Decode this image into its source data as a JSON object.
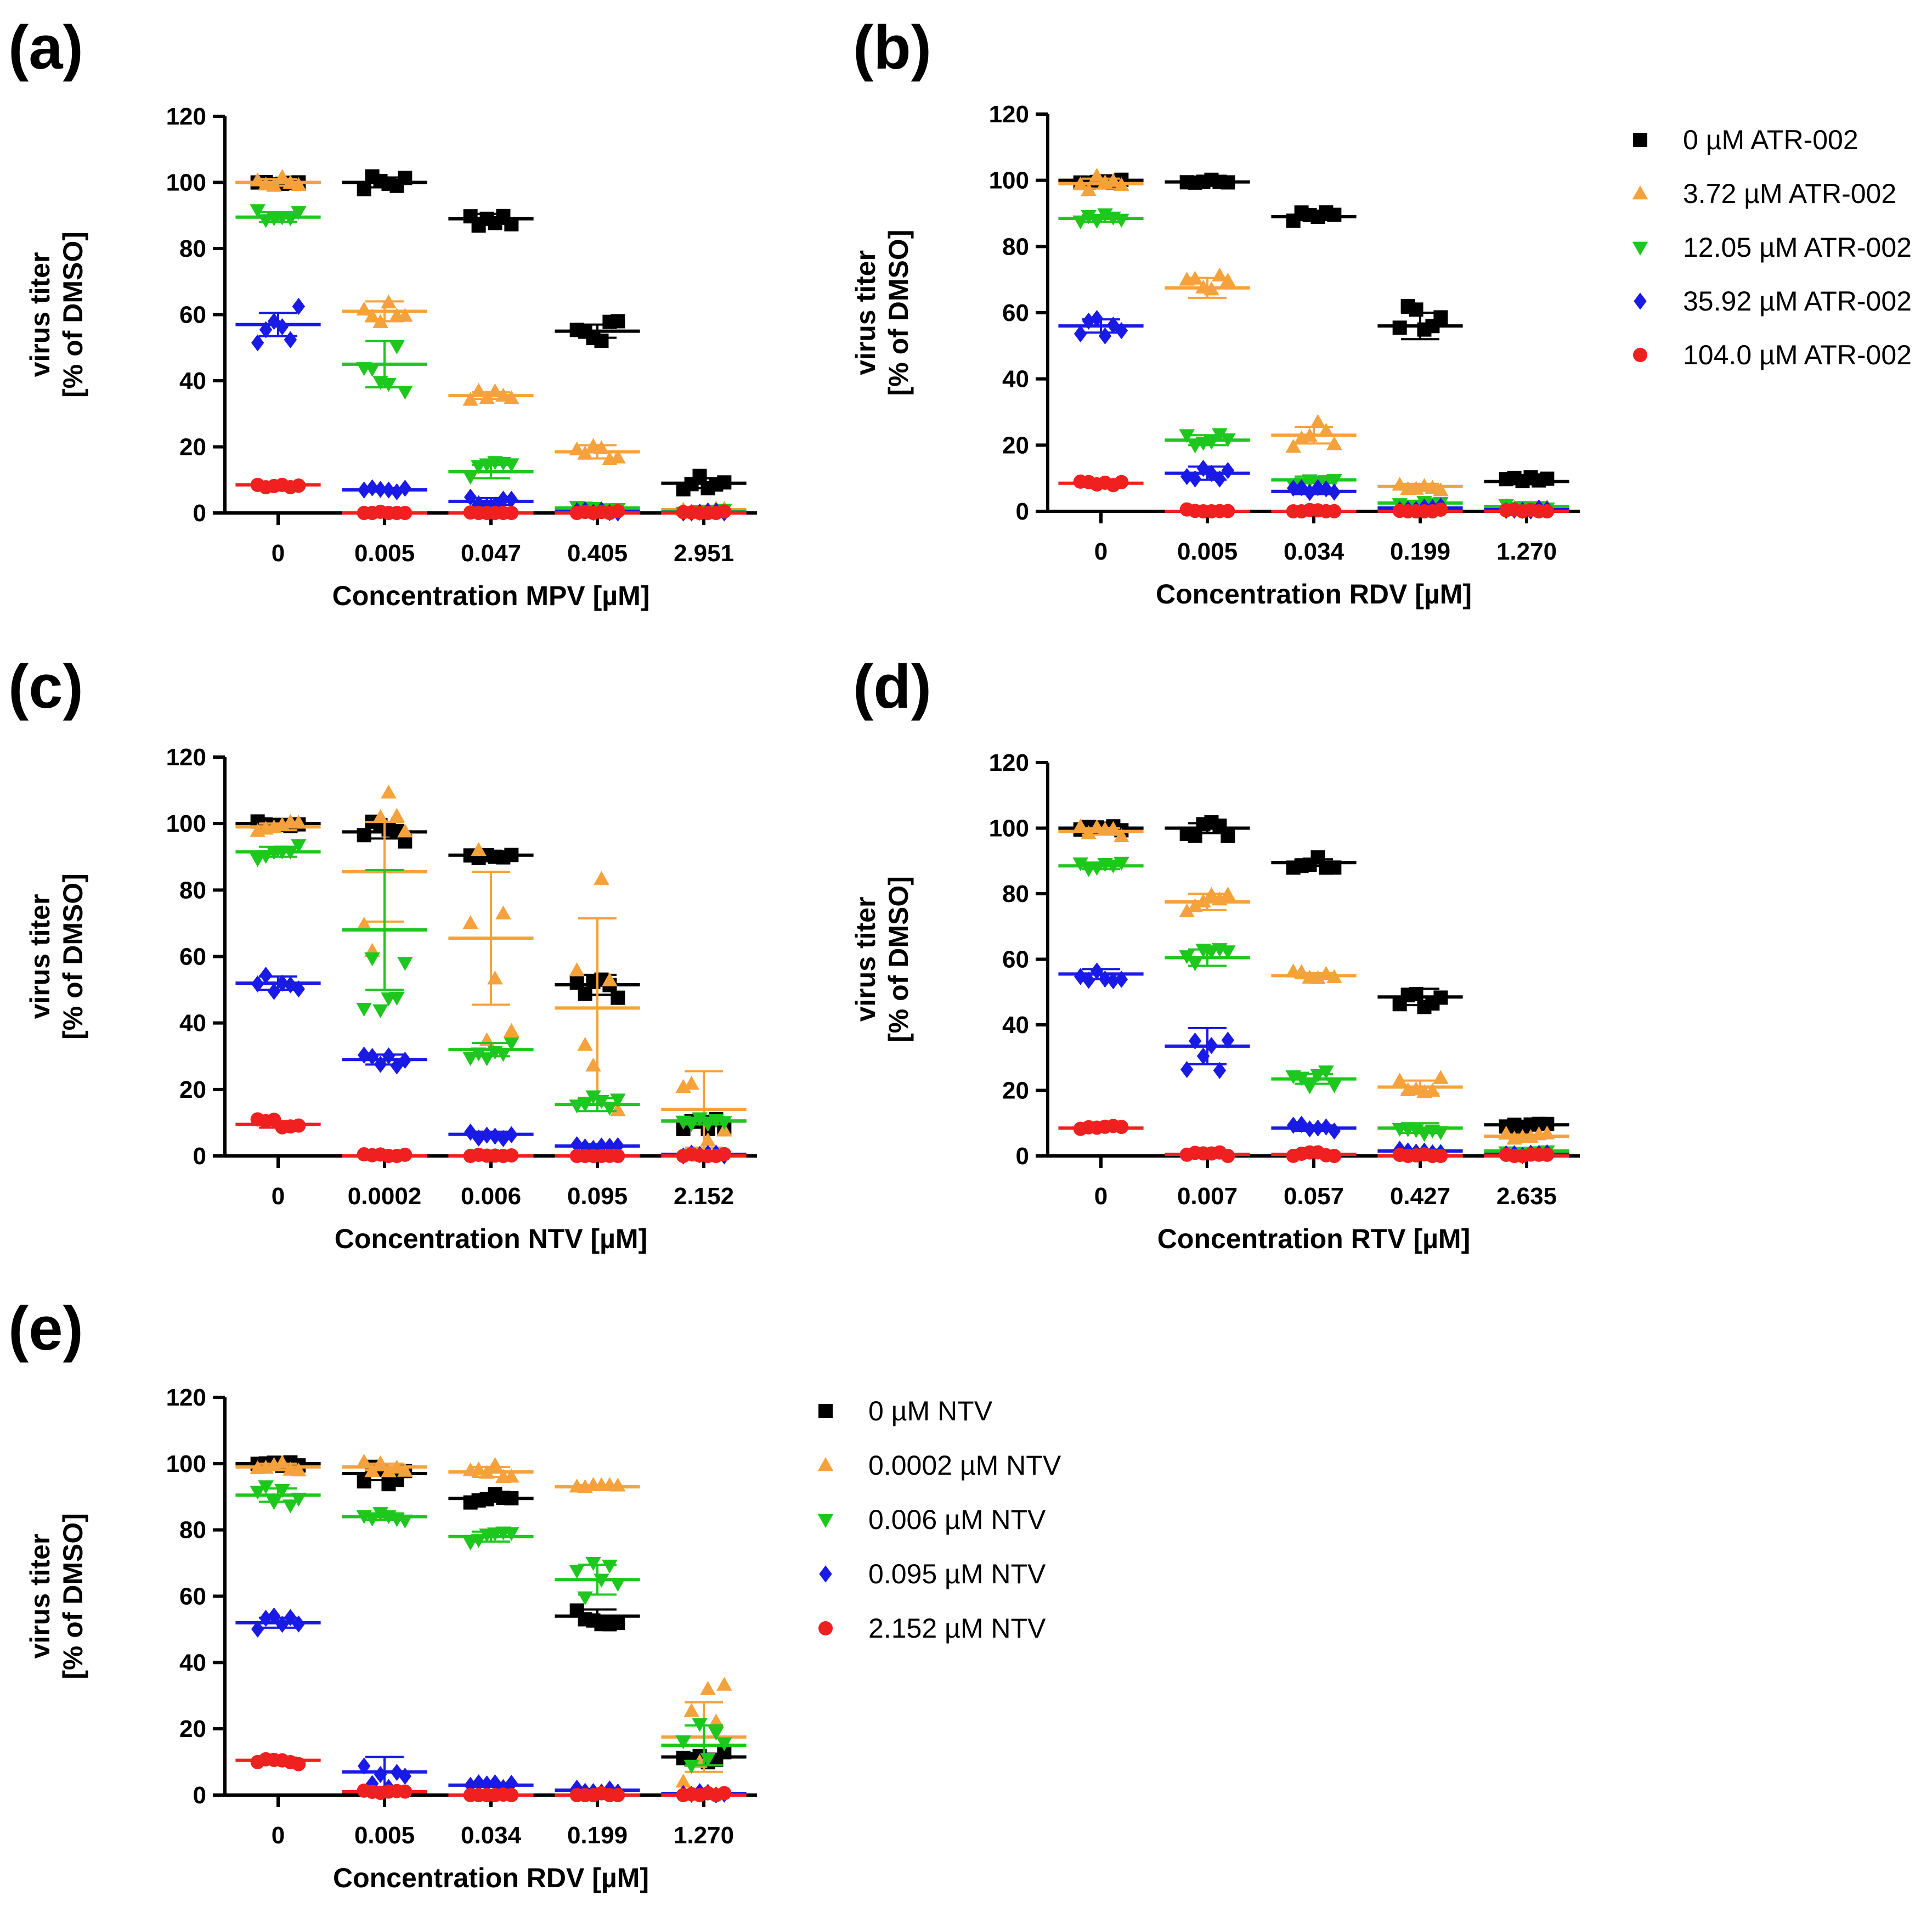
{
  "legends": [
    {
      "id": "atr-legend",
      "entries": [
        {
          "label": "0 µM ATR-002",
          "color": "#000000",
          "marker": "square"
        },
        {
          "label": "3.72 µM ATR-002",
          "color": "#f5a23c",
          "marker": "triangle-up"
        },
        {
          "label": "12.05 µM ATR-002",
          "color": "#1ec71e",
          "marker": "triangle-down"
        },
        {
          "label": "35.92 µM ATR-002",
          "color": "#1a1ae6",
          "marker": "diamond"
        },
        {
          "label": "104.0 µM ATR-002",
          "color": "#f02020",
          "marker": "circle"
        }
      ]
    },
    {
      "id": "ntv-legend",
      "entries": [
        {
          "label": "0 µM NTV",
          "color": "#000000",
          "marker": "square"
        },
        {
          "label": "0.0002 µM NTV",
          "color": "#f5a23c",
          "marker": "triangle-up"
        },
        {
          "label": "0.006 µM NTV",
          "color": "#1ec71e",
          "marker": "triangle-down"
        },
        {
          "label": "0.095 µM NTV",
          "color": "#1a1ae6",
          "marker": "diamond"
        },
        {
          "label": "2.152 µM NTV",
          "color": "#f02020",
          "marker": "circle"
        }
      ]
    }
  ],
  "chart_data": [
    {
      "panel": "(a)",
      "type": "scatter",
      "xlabel": "Concentration MPV [µM]",
      "ylabel": [
        "virus titer",
        "[% of DMSO]"
      ],
      "categories": [
        "0",
        "0.005",
        "0.047",
        "0.405",
        "2.951"
      ],
      "ylim": [
        0,
        120
      ],
      "yticks": [
        0,
        20,
        40,
        60,
        80,
        100,
        120
      ],
      "legend": "atr-legend",
      "series": [
        {
          "name": "0 µM ATR-002",
          "means": [
            100,
            100,
            89,
            55,
            9
          ],
          "errors": [
            0.5,
            1.5,
            1.5,
            2,
            1.5
          ]
        },
        {
          "name": "3.72 µM ATR-002",
          "means": [
            100,
            61,
            35.5,
            18.5,
            1
          ],
          "errors": [
            1,
            3,
            1,
            2,
            0.5
          ]
        },
        {
          "name": "12.05 µM ATR-002",
          "means": [
            89.5,
            45,
            12.5,
            1.5,
            0.5
          ],
          "errors": [
            1.5,
            7,
            2,
            0.5,
            0.3
          ]
        },
        {
          "name": "35.92 µM ATR-002",
          "means": [
            57,
            7,
            3.5,
            0.5,
            0.2
          ],
          "errors": [
            3.5,
            0.5,
            1,
            0.3,
            0.1
          ]
        },
        {
          "name": "104.0 µM ATR-002",
          "means": [
            8.5,
            0,
            0,
            0,
            0
          ],
          "errors": [
            0.5,
            0,
            0,
            0,
            0
          ]
        }
      ]
    },
    {
      "panel": "(b)",
      "type": "scatter",
      "xlabel": "Concentration RDV [µM]",
      "ylabel": [
        "virus titer",
        "[% of DMSO]"
      ],
      "categories": [
        "0",
        "0.005",
        "0.034",
        "0.199",
        "1.270"
      ],
      "ylim": [
        0,
        120
      ],
      "yticks": [
        0,
        20,
        40,
        60,
        80,
        100,
        120
      ],
      "legend": "atr-legend",
      "series": [
        {
          "name": "0 µM ATR-002",
          "means": [
            100,
            99.5,
            89,
            56,
            9
          ],
          "errors": [
            0.5,
            0.5,
            1,
            4,
            0.8
          ]
        },
        {
          "name": "3.72 µM ATR-002",
          "means": [
            99,
            67.5,
            23,
            7.5,
            1
          ],
          "errors": [
            1.5,
            3,
            2.5,
            0.8,
            0.4
          ]
        },
        {
          "name": "12.05 µM ATR-002",
          "means": [
            88.5,
            21.5,
            9.5,
            2.5,
            1.5
          ],
          "errors": [
            1,
            1.5,
            1,
            0.5,
            0.3
          ]
        },
        {
          "name": "35.92 µM ATR-002",
          "means": [
            56,
            11.5,
            6,
            1,
            0.5
          ],
          "errors": [
            2,
            2,
            0.8,
            0.3,
            0.2
          ]
        },
        {
          "name": "104.0 µM ATR-002",
          "means": [
            8.5,
            0,
            0,
            0,
            0
          ],
          "errors": [
            0.5,
            0,
            0,
            0,
            0
          ]
        }
      ]
    },
    {
      "panel": "(c)",
      "type": "scatter",
      "xlabel": "Concentration NTV [µM]",
      "ylabel": [
        "virus titer",
        "[% of DMSO]"
      ],
      "categories": [
        "0",
        "0.0002",
        "0.006",
        "0.095",
        "2.152"
      ],
      "ylim": [
        0,
        120
      ],
      "yticks": [
        0,
        20,
        40,
        60,
        80,
        100,
        120
      ],
      "legend": null,
      "series": [
        {
          "name": "0 µM NTV",
          "means": [
            100,
            97.5,
            90.5,
            51.5,
            10.5
          ],
          "errors": [
            0.5,
            2,
            0.8,
            3,
            1.5
          ]
        },
        {
          "name": "0.0002 µM NTV",
          "means": [
            99,
            85.5,
            65.5,
            44.5,
            14
          ],
          "errors": [
            1,
            15,
            20,
            27,
            11.5
          ]
        },
        {
          "name": "0.006 µM NTV",
          "means": [
            91.5,
            68,
            32,
            15.5,
            10.5
          ],
          "errors": [
            1.5,
            18,
            2,
            2,
            1
          ]
        },
        {
          "name": "0.095 µM NTV",
          "means": [
            52,
            29,
            6.5,
            3,
            0.5
          ],
          "errors": [
            2,
            1.5,
            0.8,
            0.5,
            0.2
          ]
        },
        {
          "name": "2.152 µM NTV",
          "means": [
            9.5,
            0,
            0,
            0,
            0
          ],
          "errors": [
            1,
            0,
            0,
            0,
            0
          ]
        }
      ]
    },
    {
      "panel": "(d)",
      "type": "scatter",
      "xlabel": "Concentration RTV [µM]",
      "ylabel": [
        "virus titer",
        "[% of DMSO]"
      ],
      "categories": [
        "0",
        "0.007",
        "0.057",
        "0.427",
        "2.635"
      ],
      "ylim": [
        0,
        120
      ],
      "yticks": [
        0,
        20,
        40,
        60,
        80,
        100,
        120
      ],
      "legend": null,
      "series": [
        {
          "name": "0 µM NTV",
          "means": [
            100,
            100,
            89.5,
            48.5,
            9.5
          ],
          "errors": [
            0.5,
            1.5,
            1,
            2.5,
            0.4
          ]
        },
        {
          "name": "0.0002 µM NTV",
          "means": [
            99,
            77.5,
            55,
            21,
            6
          ],
          "errors": [
            1,
            2.5,
            0.8,
            2,
            0.5
          ]
        },
        {
          "name": "0.006 µM NTV",
          "means": [
            88.5,
            60.5,
            23.5,
            8.5,
            1.5
          ],
          "errors": [
            1,
            2.5,
            1.5,
            1.5,
            0.4
          ]
        },
        {
          "name": "0.095 µM NTV",
          "means": [
            55.5,
            33.5,
            8.5,
            1.5,
            0.5
          ],
          "errors": [
            1.5,
            5.5,
            0.8,
            0.4,
            0.2
          ]
        },
        {
          "name": "2.152 µM NTV",
          "means": [
            8.5,
            0.5,
            0.5,
            0,
            0
          ],
          "errors": [
            0.5,
            0.2,
            0.2,
            0,
            0
          ]
        }
      ]
    },
    {
      "panel": "(e)",
      "type": "scatter",
      "xlabel": "Concentration RDV [µM]",
      "ylabel": [
        "virus titer",
        "[% of DMSO]"
      ],
      "categories": [
        "0",
        "0.005",
        "0.034",
        "0.199",
        "1.270"
      ],
      "ylim": [
        0,
        120
      ],
      "yticks": [
        0,
        20,
        40,
        60,
        80,
        100,
        120
      ],
      "legend": "ntv-legend",
      "series": [
        {
          "name": "0 µM NTV",
          "means": [
            100,
            97,
            89.5,
            54,
            11.5
          ],
          "errors": [
            0.5,
            2,
            1,
            2,
            1
          ]
        },
        {
          "name": "0.0002 µM NTV",
          "means": [
            99,
            99,
            97.5,
            93,
            17.5
          ],
          "errors": [
            1,
            1,
            1.5,
            0.5,
            10.5
          ]
        },
        {
          "name": "0.006 µM NTV",
          "means": [
            90.5,
            84,
            78,
            65,
            15
          ],
          "errors": [
            2,
            1,
            1.5,
            4.5,
            6
          ]
        },
        {
          "name": "0.095 µM NTV",
          "means": [
            52,
            7,
            3,
            1.5,
            0.5
          ],
          "errors": [
            1.5,
            4.5,
            0.5,
            0.3,
            0.2
          ]
        },
        {
          "name": "2.152 µM NTV",
          "means": [
            10.5,
            1,
            0,
            0,
            0
          ],
          "errors": [
            0.8,
            0.4,
            0,
            0,
            0
          ]
        }
      ]
    }
  ]
}
